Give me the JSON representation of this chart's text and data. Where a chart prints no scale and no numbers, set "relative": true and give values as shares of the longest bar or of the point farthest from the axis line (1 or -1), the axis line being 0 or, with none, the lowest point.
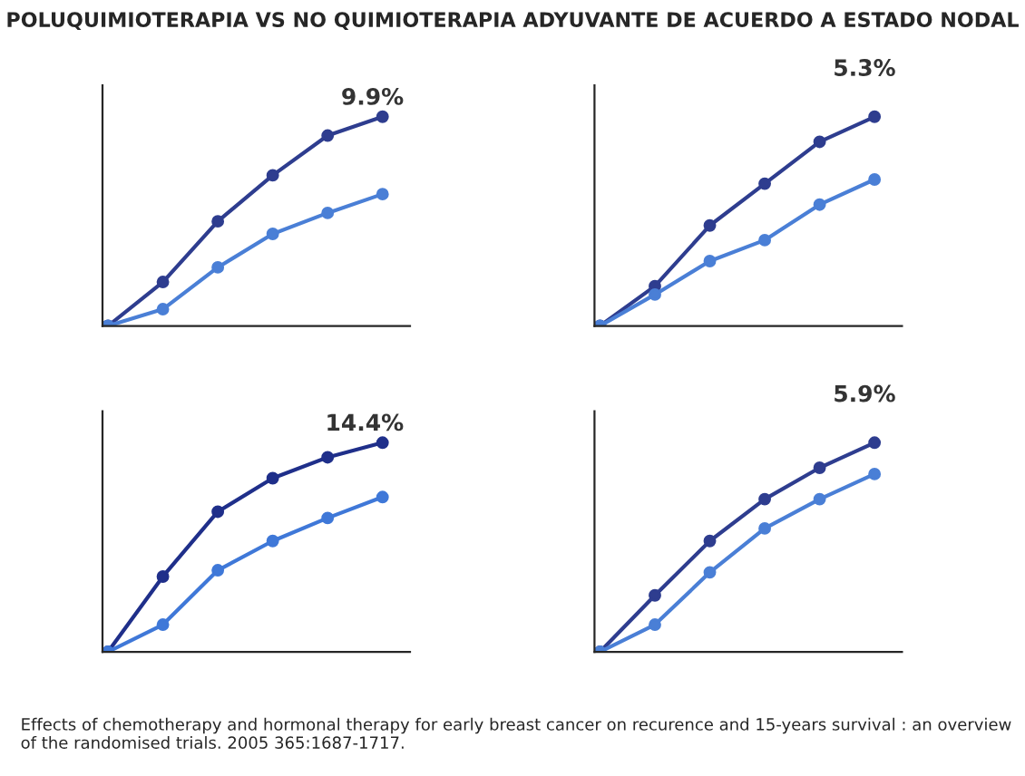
{
  "chart_data": [
    {
      "type": "line",
      "relative": true,
      "title": "POLUQUIMIOTERAPIA VS NO QUIMIOTERAPIA ADYUVANTE DE ACUERDO A ESTADO NODAL",
      "categories": [
        null,
        null,
        null,
        null,
        null,
        null
      ],
      "marker": "circle",
      "grid": false,
      "legend": false,
      "annotations": [
        "9.9%"
      ],
      "series": [
        {
          "color": "#2e3d8f",
          "values": [
            0,
            0.21,
            0.5,
            0.72,
            0.91,
            1.0
          ]
        },
        {
          "color": "#4a7fd6",
          "values": [
            0,
            0.08,
            0.28,
            0.44,
            0.54,
            0.63
          ]
        }
      ]
    },
    {
      "type": "line",
      "relative": true,
      "categories": [
        null,
        null,
        null,
        null,
        null,
        null
      ],
      "marker": "circle",
      "grid": false,
      "legend": false,
      "annotations": [
        "5.3%"
      ],
      "series": [
        {
          "color": "#2e3d8f",
          "values": [
            0,
            0.19,
            0.48,
            0.68,
            0.88,
            1.0
          ]
        },
        {
          "color": "#4a7fd6",
          "values": [
            0,
            0.15,
            0.31,
            0.41,
            0.58,
            0.7
          ]
        }
      ]
    },
    {
      "type": "line",
      "relative": true,
      "categories": [
        null,
        null,
        null,
        null,
        null,
        null
      ],
      "marker": "circle",
      "grid": false,
      "legend": false,
      "annotations": [
        "14.4%"
      ],
      "series": [
        {
          "color": "#1f2f8a",
          "values": [
            0,
            0.36,
            0.67,
            0.83,
            0.93,
            1.0
          ]
        },
        {
          "color": "#3f78d8",
          "values": [
            0,
            0.13,
            0.39,
            0.53,
            0.64,
            0.74
          ]
        }
      ]
    },
    {
      "type": "line",
      "relative": true,
      "categories": [
        null,
        null,
        null,
        null,
        null,
        null
      ],
      "marker": "circle",
      "grid": false,
      "legend": false,
      "annotations": [
        "5.9%",
        "Effects of chemotherapy and hormonal therapy for early breast cancer on recurence and 15-years survival : an overview of the randomised trials. 2005 365:1687-1717."
      ],
      "series": [
        {
          "color": "#2e3d8f",
          "values": [
            0,
            0.27,
            0.53,
            0.73,
            0.88,
            1.0
          ]
        },
        {
          "color": "#4a7fd6",
          "values": [
            0,
            0.13,
            0.38,
            0.59,
            0.73,
            0.85
          ]
        }
      ]
    }
  ]
}
